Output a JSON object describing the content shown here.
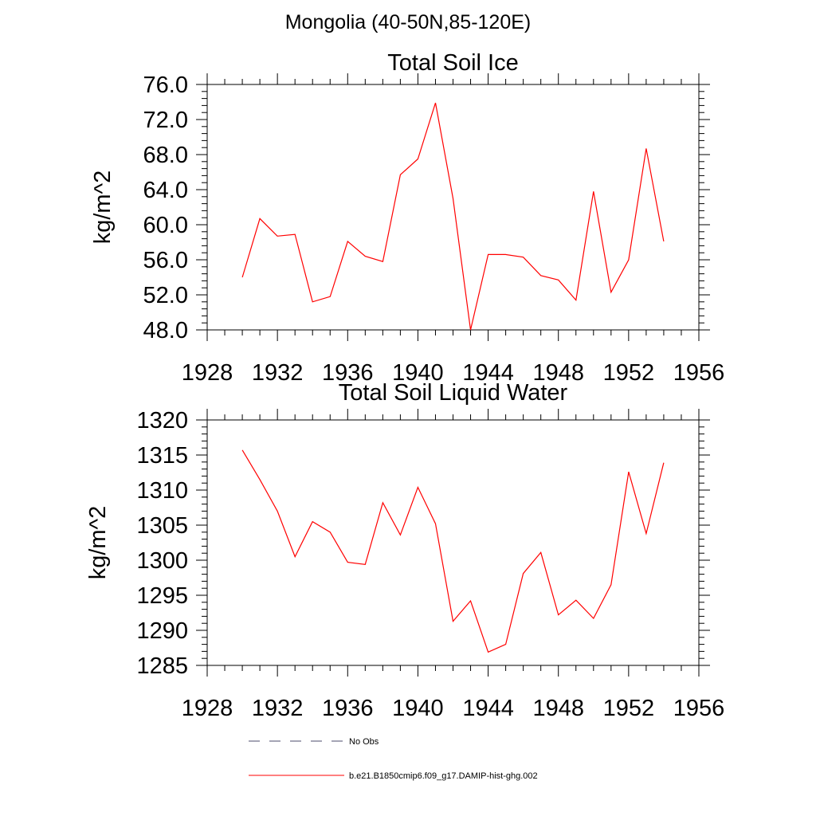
{
  "figure_title": "Mongolia (40-50N,85-120E)",
  "chart_data": [
    {
      "type": "line",
      "title": "Total Soil Ice",
      "ylabel": "kg/m^2",
      "xlabel": "",
      "xlim": [
        1928,
        1956
      ],
      "ylim": [
        48,
        76
      ],
      "xticks": [
        1928,
        1932,
        1936,
        1940,
        1944,
        1948,
        1952,
        1956
      ],
      "xtick_labels": [
        "1928",
        "1932",
        "1936",
        "1940",
        "1944",
        "1948",
        "1952",
        "1956"
      ],
      "yticks": [
        48,
        52,
        56,
        60,
        64,
        68,
        72,
        76
      ],
      "ytick_labels": [
        "48.0",
        "52.0",
        "56.0",
        "60.0",
        "64.0",
        "68.0",
        "72.0",
        "76.0"
      ],
      "grid": false,
      "series": [
        {
          "name": "b.e21.B1850cmip6.f09_g17.DAMIP-hist-ghg.002",
          "color": "#ff0000",
          "x": [
            1930,
            1931,
            1932,
            1933,
            1934,
            1935,
            1936,
            1937,
            1938,
            1939,
            1940,
            1941,
            1942,
            1943,
            1944,
            1945,
            1946,
            1947,
            1948,
            1949,
            1950,
            1951,
            1952,
            1953,
            1954
          ],
          "values": [
            54.0,
            60.7,
            58.7,
            58.9,
            51.2,
            51.8,
            58.1,
            56.4,
            55.8,
            65.7,
            67.5,
            73.9,
            63.0,
            48.0,
            56.6,
            56.6,
            56.3,
            54.2,
            53.7,
            51.4,
            63.8,
            52.3,
            56.0,
            68.7,
            58.1
          ]
        }
      ]
    },
    {
      "type": "line",
      "title": "Total Soil Liquid Water",
      "ylabel": "kg/m^2",
      "xlabel": "",
      "xlim": [
        1928,
        1956
      ],
      "ylim": [
        1285,
        1320
      ],
      "xticks": [
        1928,
        1932,
        1936,
        1940,
        1944,
        1948,
        1952,
        1956
      ],
      "xtick_labels": [
        "1928",
        "1932",
        "1936",
        "1940",
        "1944",
        "1948",
        "1952",
        "1956"
      ],
      "yticks": [
        1285,
        1290,
        1295,
        1300,
        1305,
        1310,
        1315,
        1320
      ],
      "ytick_labels": [
        "1285",
        "1290",
        "1295",
        "1300",
        "1305",
        "1310",
        "1315",
        "1320"
      ],
      "grid": false,
      "series": [
        {
          "name": "b.e21.B1850cmip6.f09_g17.DAMIP-hist-ghg.002",
          "color": "#ff0000",
          "x": [
            1930,
            1931,
            1932,
            1933,
            1934,
            1935,
            1936,
            1937,
            1938,
            1939,
            1940,
            1941,
            1942,
            1943,
            1944,
            1945,
            1946,
            1947,
            1948,
            1949,
            1950,
            1951,
            1952,
            1953,
            1954
          ],
          "values": [
            1315.7,
            1311.5,
            1307.0,
            1300.5,
            1305.5,
            1304.0,
            1299.7,
            1299.4,
            1308.2,
            1303.6,
            1310.4,
            1305.2,
            1291.3,
            1294.2,
            1286.9,
            1288.0,
            1298.1,
            1301.1,
            1292.2,
            1294.3,
            1291.7,
            1296.5,
            1312.6,
            1303.8,
            1313.9
          ]
        }
      ]
    }
  ],
  "legend": {
    "placement": "bottom-left",
    "items": [
      {
        "label": "No Obs",
        "color": "#4b4b6b",
        "style": "dashed"
      },
      {
        "label": "b.e21.B1850cmip6.f09_g17.DAMIP-hist-ghg.002",
        "color": "#ff0000",
        "style": "solid"
      }
    ]
  }
}
